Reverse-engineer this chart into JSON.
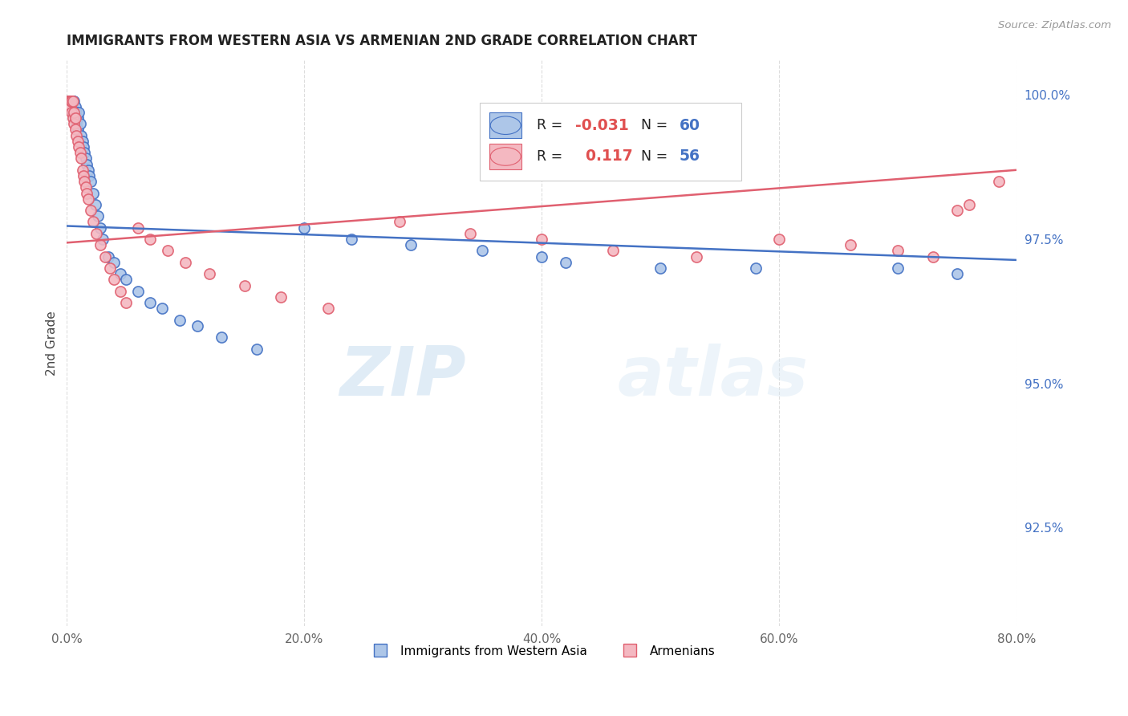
{
  "title": "IMMIGRANTS FROM WESTERN ASIA VS ARMENIAN 2ND GRADE CORRELATION CHART",
  "source_text": "Source: ZipAtlas.com",
  "ylabel": "2nd Grade",
  "xlim": [
    0.0,
    0.8
  ],
  "ylim": [
    0.908,
    1.006
  ],
  "xtick_labels": [
    "0.0%",
    "20.0%",
    "40.0%",
    "60.0%",
    "80.0%"
  ],
  "xtick_values": [
    0.0,
    0.2,
    0.4,
    0.6,
    0.8
  ],
  "ytick_labels_right": [
    "92.5%",
    "95.0%",
    "97.5%",
    "100.0%"
  ],
  "ytick_values_right": [
    0.925,
    0.95,
    0.975,
    1.0
  ],
  "blue_fill": "#adc6e8",
  "blue_edge": "#4472c4",
  "pink_fill": "#f4b8c1",
  "pink_edge": "#e06070",
  "blue_line_color": "#4472c4",
  "pink_line_color": "#e06070",
  "legend_R_blue": "-0.031",
  "legend_N_blue": "60",
  "legend_R_pink": "0.117",
  "legend_N_pink": "56",
  "legend_label_blue": "Immigrants from Western Asia",
  "legend_label_pink": "Armenians",
  "watermark_zip": "ZIP",
  "watermark_atlas": "atlas",
  "background_color": "#ffffff",
  "grid_color": "#dddddd",
  "blue_x": [
    0.001,
    0.001,
    0.002,
    0.002,
    0.002,
    0.003,
    0.003,
    0.003,
    0.004,
    0.004,
    0.004,
    0.004,
    0.005,
    0.005,
    0.005,
    0.006,
    0.006,
    0.007,
    0.007,
    0.008,
    0.008,
    0.009,
    0.009,
    0.01,
    0.011,
    0.012,
    0.013,
    0.014,
    0.015,
    0.016,
    0.017,
    0.018,
    0.019,
    0.02,
    0.022,
    0.024,
    0.026,
    0.028,
    0.03,
    0.035,
    0.04,
    0.045,
    0.05,
    0.06,
    0.07,
    0.08,
    0.095,
    0.11,
    0.13,
    0.16,
    0.2,
    0.24,
    0.29,
    0.35,
    0.4,
    0.42,
    0.5,
    0.58,
    0.7,
    0.75
  ],
  "blue_y": [
    0.999,
    0.999,
    0.999,
    0.999,
    0.998,
    0.999,
    0.999,
    0.998,
    0.999,
    0.999,
    0.999,
    0.998,
    0.999,
    0.999,
    0.997,
    0.999,
    0.997,
    0.998,
    0.996,
    0.997,
    0.995,
    0.996,
    0.994,
    0.997,
    0.995,
    0.993,
    0.992,
    0.991,
    0.99,
    0.989,
    0.988,
    0.987,
    0.986,
    0.985,
    0.983,
    0.981,
    0.979,
    0.977,
    0.975,
    0.972,
    0.971,
    0.969,
    0.968,
    0.966,
    0.964,
    0.963,
    0.961,
    0.96,
    0.958,
    0.956,
    0.977,
    0.975,
    0.974,
    0.973,
    0.972,
    0.971,
    0.97,
    0.97,
    0.97,
    0.969
  ],
  "pink_x": [
    0.001,
    0.001,
    0.002,
    0.002,
    0.002,
    0.003,
    0.003,
    0.004,
    0.004,
    0.004,
    0.005,
    0.005,
    0.006,
    0.006,
    0.007,
    0.007,
    0.008,
    0.009,
    0.01,
    0.011,
    0.012,
    0.013,
    0.014,
    0.015,
    0.016,
    0.017,
    0.018,
    0.02,
    0.022,
    0.025,
    0.028,
    0.032,
    0.036,
    0.04,
    0.045,
    0.05,
    0.06,
    0.07,
    0.085,
    0.1,
    0.12,
    0.15,
    0.18,
    0.22,
    0.28,
    0.34,
    0.4,
    0.46,
    0.53,
    0.6,
    0.66,
    0.7,
    0.73,
    0.75,
    0.76,
    0.785
  ],
  "pink_y": [
    0.999,
    0.999,
    0.999,
    0.999,
    0.998,
    0.999,
    0.998,
    0.999,
    0.999,
    0.997,
    0.999,
    0.996,
    0.997,
    0.995,
    0.996,
    0.994,
    0.993,
    0.992,
    0.991,
    0.99,
    0.989,
    0.987,
    0.986,
    0.985,
    0.984,
    0.983,
    0.982,
    0.98,
    0.978,
    0.976,
    0.974,
    0.972,
    0.97,
    0.968,
    0.966,
    0.964,
    0.977,
    0.975,
    0.973,
    0.971,
    0.969,
    0.967,
    0.965,
    0.963,
    0.978,
    0.976,
    0.975,
    0.973,
    0.972,
    0.975,
    0.974,
    0.973,
    0.972,
    0.98,
    0.981,
    0.985
  ],
  "blue_trend": [
    0.9773,
    0.9714
  ],
  "pink_trend": [
    0.9744,
    0.987
  ]
}
